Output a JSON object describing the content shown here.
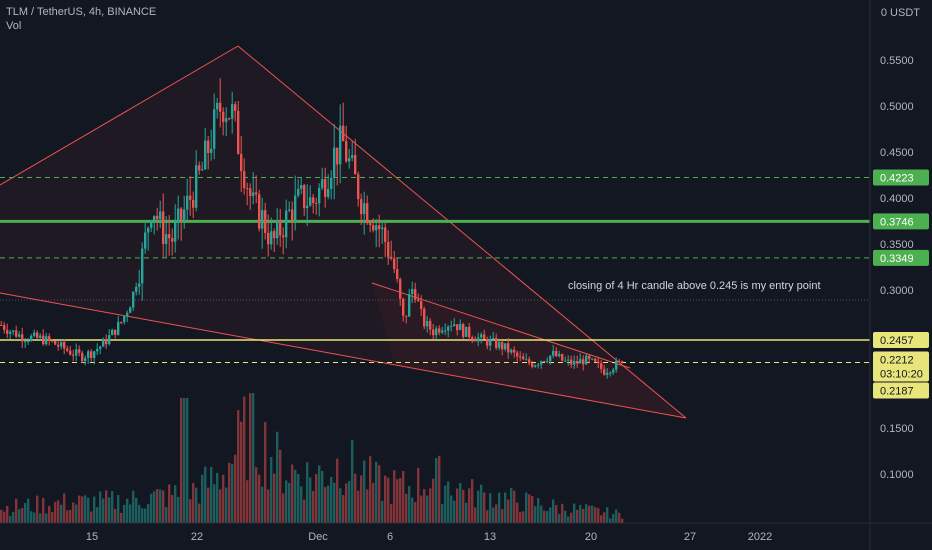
{
  "header": {
    "symbol_line": "TLM / TetherUS, 4h, BINANCE",
    "volume_label": "Vol",
    "currency": "USDT"
  },
  "annotation": "closing of 4 Hr candle above 0.245 is my entry point",
  "chart_data": {
    "type": "candlestick",
    "title": "TLM / TetherUS, 4h, BINANCE",
    "ylim": [
      0.06,
      0.58
    ],
    "y_ticks": [
      "0.5500",
      "0.5000",
      "0.4500",
      "0.4000",
      "0.3500",
      "0.3000",
      "0.1500",
      "0.1000"
    ],
    "x_ticks": [
      "15",
      "22",
      "Dec",
      "6",
      "13",
      "20",
      "27",
      "2022"
    ],
    "levels": [
      {
        "label": "0.4223",
        "value": 0.4223,
        "style": "dashed",
        "color": "#4caf50"
      },
      {
        "label": "0.3746",
        "value": 0.3746,
        "style": "solid",
        "color": "#4caf50"
      },
      {
        "label": "0.3349",
        "value": 0.3349,
        "style": "dashed",
        "color": "#4caf50"
      },
      {
        "label": "0.2457",
        "value": 0.2457,
        "style": "solid",
        "color": "#e8e57a"
      },
      {
        "label": "0.2212",
        "value": 0.2212,
        "style": "dashed",
        "color": "#e8e57a"
      },
      {
        "label": "0.2187",
        "value": 0.2187,
        "style": "none",
        "color": "#e8e57a"
      }
    ],
    "last_price": "0.2212",
    "countdown": "03:10:20",
    "close_path": [
      [
        0.28,
        0.262
      ],
      [
        0.3,
        0.255
      ],
      [
        0.32,
        0.25
      ],
      [
        0.34,
        0.248
      ],
      [
        0.36,
        0.247
      ],
      [
        0.38,
        0.243
      ],
      [
        0.4,
        0.238
      ],
      [
        0.42,
        0.232
      ],
      [
        0.44,
        0.228
      ],
      [
        0.46,
        0.232
      ],
      [
        0.48,
        0.24
      ],
      [
        0.5,
        0.252
      ],
      [
        0.52,
        0.266
      ],
      [
        0.54,
        0.29
      ],
      [
        0.56,
        0.335
      ],
      [
        0.58,
        0.395
      ],
      [
        0.6,
        0.365
      ],
      [
        0.62,
        0.355
      ],
      [
        0.64,
        0.38
      ],
      [
        0.66,
        0.405
      ],
      [
        0.68,
        0.43
      ],
      [
        0.7,
        0.47
      ],
      [
        0.72,
        0.505
      ],
      [
        0.74,
        0.49
      ],
      [
        0.76,
        0.44
      ],
      [
        0.78,
        0.392
      ],
      [
        0.8,
        0.378
      ],
      [
        0.82,
        0.35
      ],
      [
        0.84,
        0.37
      ],
      [
        0.86,
        0.39
      ],
      [
        0.88,
        0.4
      ],
      [
        0.9,
        0.395
      ],
      [
        0.92,
        0.415
      ],
      [
        0.94,
        0.445
      ],
      [
        0.96,
        0.46
      ],
      [
        0.98,
        0.425
      ],
      [
        1.0,
        0.395
      ],
      [
        1.02,
        0.38
      ],
      [
        1.04,
        0.36
      ],
      [
        1.06,
        0.33
      ],
      [
        1.08,
        0.265
      ],
      [
        1.1,
        0.305
      ],
      [
        1.12,
        0.265
      ],
      [
        1.14,
        0.255
      ],
      [
        1.16,
        0.262
      ],
      [
        1.18,
        0.265
      ],
      [
        1.2,
        0.255
      ],
      [
        1.22,
        0.25
      ],
      [
        1.24,
        0.245
      ],
      [
        1.26,
        0.242
      ],
      [
        1.28,
        0.238
      ],
      [
        1.3,
        0.23
      ],
      [
        1.32,
        0.222
      ],
      [
        1.34,
        0.22
      ],
      [
        1.36,
        0.226
      ],
      [
        1.38,
        0.23
      ],
      [
        1.4,
        0.222
      ],
      [
        1.42,
        0.22
      ],
      [
        1.44,
        0.224
      ],
      [
        1.46,
        0.22
      ],
      [
        1.48,
        0.212
      ],
      [
        1.5,
        0.218
      ],
      [
        1.52,
        0.2212
      ]
    ],
    "volume_profile": [
      [
        0.0,
        0.15
      ],
      [
        0.1,
        0.2
      ],
      [
        0.2,
        0.22
      ],
      [
        0.3,
        0.3
      ],
      [
        0.35,
        0.45
      ],
      [
        0.4,
        0.95
      ],
      [
        0.45,
        0.55
      ],
      [
        0.5,
        0.45
      ],
      [
        0.55,
        0.6
      ],
      [
        0.6,
        0.4
      ],
      [
        0.65,
        0.35
      ],
      [
        0.7,
        0.45
      ],
      [
        0.75,
        0.3
      ],
      [
        0.8,
        0.25
      ],
      [
        0.85,
        0.2
      ],
      [
        0.9,
        0.15
      ],
      [
        0.95,
        0.12
      ],
      [
        1.0,
        0.08
      ]
    ]
  }
}
